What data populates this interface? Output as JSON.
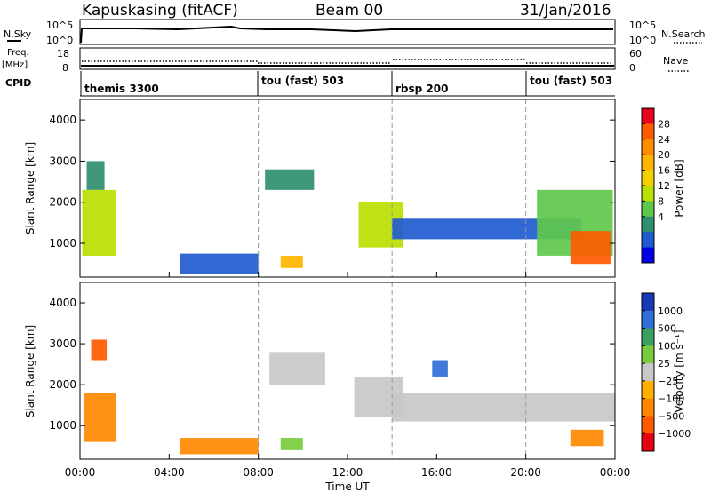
{
  "header": {
    "title": "Kapuskasing (fitACF)",
    "beam": "Beam 00",
    "date": "31/Jan/2016"
  },
  "panels": {
    "nsky": {
      "label": "N.Sky",
      "right_label": "N.Search",
      "left_ticks": [
        "10^5",
        "10^0"
      ],
      "right_ticks": [
        "10^5",
        "10^0"
      ]
    },
    "freq": {
      "label": "Freq.",
      "unit": "[MHz]",
      "right_label": "Nave",
      "left_ticks": [
        "18",
        "8"
      ],
      "right_ticks": [
        "60",
        "0"
      ]
    },
    "cpid": {
      "label": "CPID",
      "segments": [
        "themis 3300",
        "tou (fast) 503",
        "rbsp 200",
        "tou (fast) 503"
      ]
    }
  },
  "colorbars": {
    "power": {
      "label": "Power [dB]",
      "ticks": [
        "28",
        "24",
        "20",
        "16",
        "12",
        "8",
        "4"
      ],
      "colors": [
        "#e8001c",
        "#ff5a00",
        "#ff8c00",
        "#ffb400",
        "#f2d000",
        "#b8e000",
        "#5ec84c",
        "#2f8f70",
        "#1f5bd0",
        "#0000e8"
      ]
    },
    "velocity": {
      "label": "Velocity [m s⁻¹]",
      "ticks": [
        "1000",
        "500",
        "100",
        "25",
        "−25",
        "−100",
        "−500",
        "−1000"
      ],
      "colors": [
        "#1738b8",
        "#2f6fd8",
        "#3aa060",
        "#78cc3c",
        "#c8c8c8",
        "#ffb000",
        "#ff8800",
        "#ff5a00",
        "#e80010"
      ]
    }
  },
  "chart_data": {
    "type": "heatmap",
    "x_axis": {
      "label": "Time UT",
      "range": [
        "00:00",
        "24:00"
      ],
      "tick_labels": [
        "00:00",
        "04:00",
        "08:00",
        "12:00",
        "16:00",
        "20:00",
        "00:00"
      ]
    },
    "y_axis": {
      "label": "Slant Range [km]",
      "range": [
        180,
        4500
      ],
      "tick_labels": [
        "1000",
        "2000",
        "3000",
        "4000"
      ]
    },
    "cpid_change_hours": [
      8,
      14,
      20
    ],
    "power_panel": {
      "quantity": "Power",
      "unit": "dB",
      "regions": [
        {
          "t": [
            0.1,
            1.6
          ],
          "r": [
            700,
            2300
          ],
          "value": 14
        },
        {
          "t": [
            0.3,
            1.1
          ],
          "r": [
            2300,
            3000
          ],
          "value": 8
        },
        {
          "t": [
            4.5,
            8.0
          ],
          "r": [
            250,
            750
          ],
          "value": 6
        },
        {
          "t": [
            8.3,
            10.5
          ],
          "r": [
            2300,
            2800
          ],
          "value": 8
        },
        {
          "t": [
            9.0,
            10.0
          ],
          "r": [
            400,
            700
          ],
          "value": 22
        },
        {
          "t": [
            12.5,
            14.5
          ],
          "r": [
            900,
            2000
          ],
          "value": 16
        },
        {
          "t": [
            14.0,
            22.5
          ],
          "r": [
            1100,
            1600
          ],
          "value": 6
        },
        {
          "t": [
            20.5,
            23.9
          ],
          "r": [
            700,
            2300
          ],
          "value": 12
        },
        {
          "t": [
            22.0,
            23.8
          ],
          "r": [
            500,
            1300
          ],
          "value": 26
        }
      ]
    },
    "velocity_panel": {
      "quantity": "Velocity",
      "unit": "m s-1",
      "regions": [
        {
          "t": [
            0.2,
            1.6
          ],
          "r": [
            600,
            1800
          ],
          "value": -300
        },
        {
          "t": [
            0.5,
            1.2
          ],
          "r": [
            2600,
            3100
          ],
          "value": -700
        },
        {
          "t": [
            4.5,
            8.0
          ],
          "r": [
            300,
            700
          ],
          "value": -150
        },
        {
          "t": [
            8.5,
            11.0
          ],
          "r": [
            2000,
            2800
          ],
          "value": 0
        },
        {
          "t": [
            9.0,
            10.0
          ],
          "r": [
            400,
            700
          ],
          "value": 70
        },
        {
          "t": [
            12.3,
            14.5
          ],
          "r": [
            1200,
            2200
          ],
          "value": 0
        },
        {
          "t": [
            14.0,
            24.0
          ],
          "r": [
            1100,
            1800
          ],
          "value": 0
        },
        {
          "t": [
            22.0,
            23.5
          ],
          "r": [
            500,
            900
          ],
          "value": -500
        },
        {
          "t": [
            15.8,
            16.5
          ],
          "r": [
            2200,
            2600
          ],
          "value": 700
        }
      ]
    }
  }
}
